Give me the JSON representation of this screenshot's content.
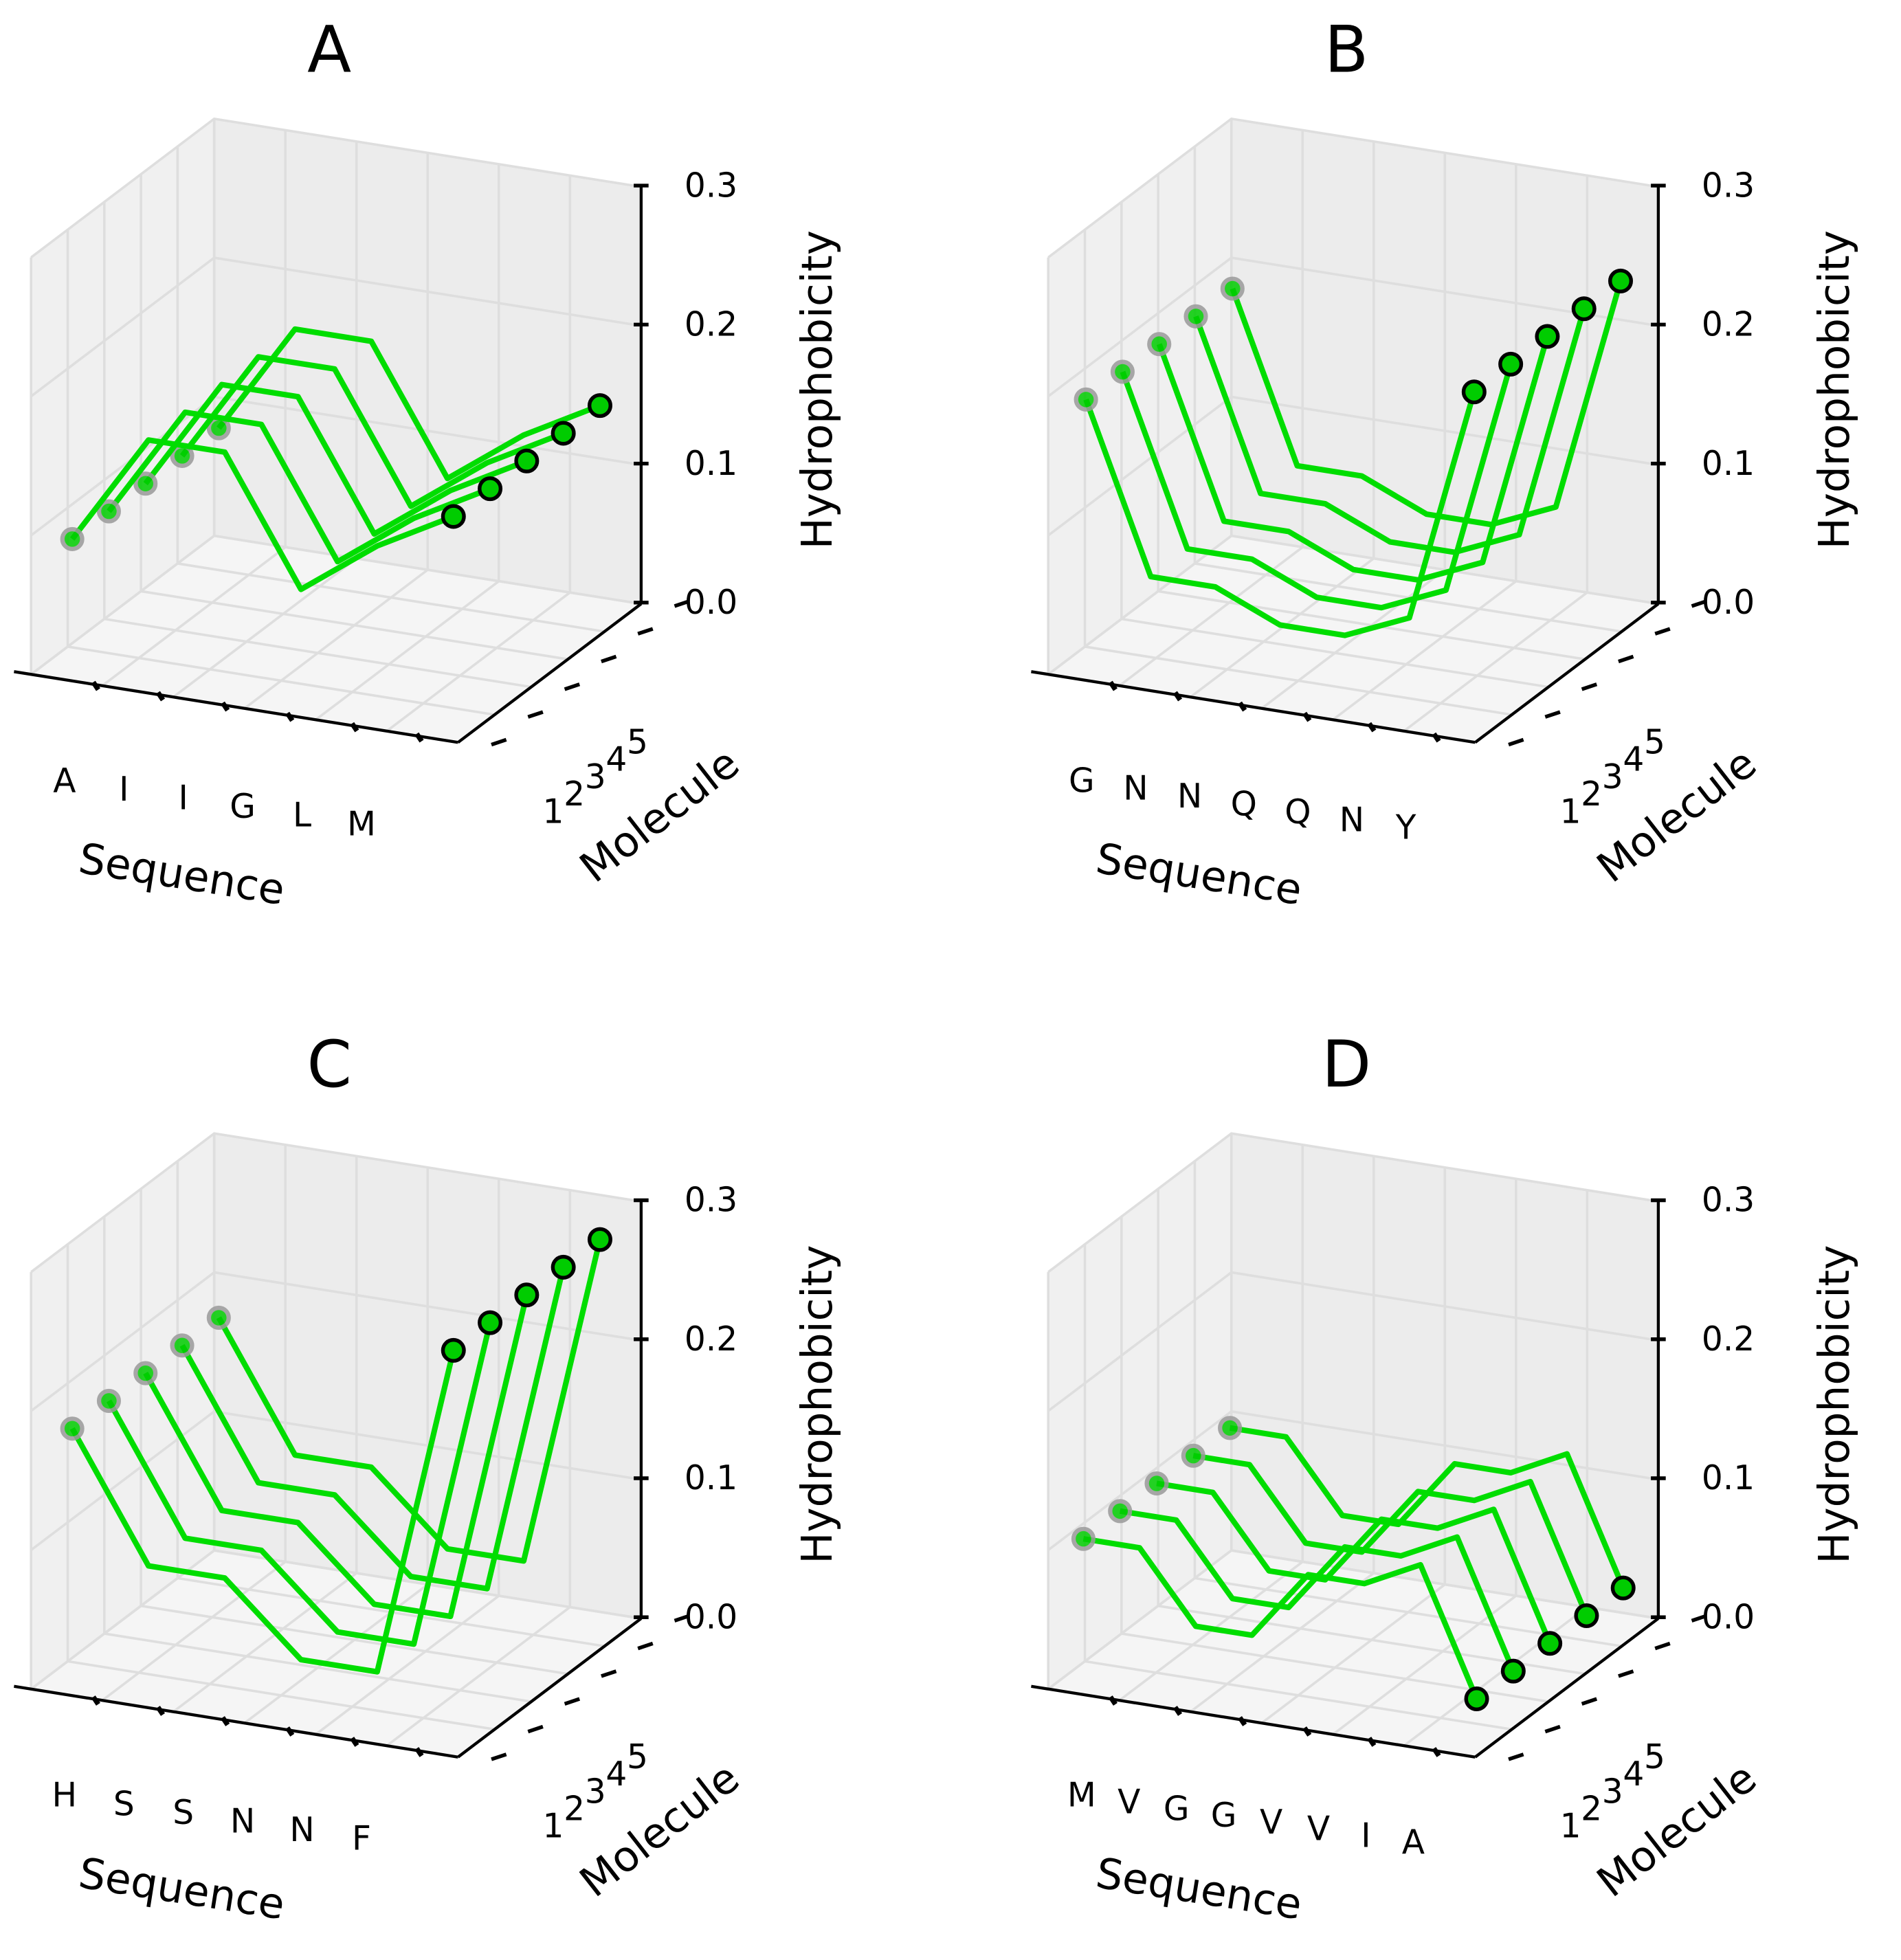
{
  "figure": {
    "background": "#ffffff"
  },
  "colors": {
    "line": "#00dd00",
    "marker_fill": "#00cc00",
    "end_marker_edge": "#000000",
    "start_marker_edge": "#9a9a9a",
    "pane": "#f2f2f2",
    "grid": "#dedede"
  },
  "chart_data": [
    {
      "panel": "A",
      "type": "line3d",
      "title": "A",
      "xlabel": "Sequence",
      "ylabel": "Molecule",
      "zlabel": "Hydrophobicity",
      "sequence": [
        "A",
        "I",
        "I",
        "G",
        "L",
        "M"
      ],
      "molecules": [
        1,
        2,
        3,
        4,
        5
      ],
      "zlim": [
        0.0,
        0.3
      ],
      "zticks": [
        "0.0",
        "0.1",
        "0.2",
        "0.3"
      ],
      "series": [
        {
          "name": "1",
          "values": [
            0.09,
            0.17,
            0.17,
            0.08,
            0.12,
            0.15
          ]
        },
        {
          "name": "2",
          "values": [
            0.09,
            0.17,
            0.17,
            0.08,
            0.12,
            0.15
          ]
        },
        {
          "name": "3",
          "values": [
            0.09,
            0.17,
            0.17,
            0.08,
            0.12,
            0.15
          ]
        },
        {
          "name": "4",
          "values": [
            0.09,
            0.17,
            0.17,
            0.08,
            0.12,
            0.15
          ]
        },
        {
          "name": "5",
          "values": [
            0.09,
            0.17,
            0.17,
            0.08,
            0.12,
            0.15
          ]
        }
      ]
    },
    {
      "panel": "B",
      "type": "line3d",
      "title": "B",
      "xlabel": "Sequence",
      "ylabel": "Molecule",
      "zlabel": "Hydrophobicity",
      "sequence": [
        "G",
        "N",
        "N",
        "Q",
        "Q",
        "N",
        "Y"
      ],
      "molecules": [
        1,
        2,
        3,
        4,
        5
      ],
      "zlim": [
        0.0,
        0.3
      ],
      "zticks": [
        "0.0",
        "0.1",
        "0.2",
        "0.3"
      ],
      "series": [
        {
          "name": "1",
          "values": [
            0.19,
            0.07,
            0.07,
            0.05,
            0.05,
            0.07,
            0.24
          ]
        },
        {
          "name": "2",
          "values": [
            0.19,
            0.07,
            0.07,
            0.05,
            0.05,
            0.07,
            0.24
          ]
        },
        {
          "name": "3",
          "values": [
            0.19,
            0.07,
            0.07,
            0.05,
            0.05,
            0.07,
            0.24
          ]
        },
        {
          "name": "4",
          "values": [
            0.19,
            0.07,
            0.07,
            0.05,
            0.05,
            0.07,
            0.24
          ]
        },
        {
          "name": "5",
          "values": [
            0.19,
            0.07,
            0.07,
            0.05,
            0.05,
            0.07,
            0.24
          ]
        }
      ]
    },
    {
      "panel": "C",
      "type": "line3d",
      "title": "C",
      "xlabel": "Sequence",
      "ylabel": "Molecule",
      "zlabel": "Hydrophobicity",
      "sequence": [
        "H",
        "S",
        "S",
        "N",
        "N",
        "F"
      ],
      "molecules": [
        1,
        2,
        3,
        4,
        5
      ],
      "zlim": [
        0.0,
        0.3
      ],
      "zticks": [
        "0.0",
        "0.1",
        "0.2",
        "0.3"
      ],
      "series": [
        {
          "name": "1",
          "values": [
            0.18,
            0.09,
            0.09,
            0.04,
            0.04,
            0.28
          ]
        },
        {
          "name": "2",
          "values": [
            0.18,
            0.09,
            0.09,
            0.04,
            0.04,
            0.28
          ]
        },
        {
          "name": "3",
          "values": [
            0.18,
            0.09,
            0.09,
            0.04,
            0.04,
            0.28
          ]
        },
        {
          "name": "4",
          "values": [
            0.18,
            0.09,
            0.09,
            0.04,
            0.04,
            0.28
          ]
        },
        {
          "name": "5",
          "values": [
            0.18,
            0.09,
            0.09,
            0.04,
            0.04,
            0.28
          ]
        }
      ]
    },
    {
      "panel": "D",
      "type": "line3d",
      "title": "D",
      "xlabel": "Sequence",
      "ylabel": "Molecule",
      "zlabel": "Hydrophobicity",
      "sequence": [
        "M",
        "V",
        "G",
        "G",
        "V",
        "V",
        "I",
        "A"
      ],
      "molecules": [
        1,
        2,
        3,
        4,
        5
      ],
      "zlim": [
        0.0,
        0.3
      ],
      "zticks": [
        "0.0",
        "0.1",
        "0.2",
        "0.3"
      ],
      "series": [
        {
          "name": "1",
          "values": [
            0.1,
            0.1,
            0.05,
            0.05,
            0.1,
            0.1,
            0.12,
            0.03
          ]
        },
        {
          "name": "2",
          "values": [
            0.1,
            0.1,
            0.05,
            0.05,
            0.1,
            0.1,
            0.12,
            0.03
          ]
        },
        {
          "name": "3",
          "values": [
            0.1,
            0.1,
            0.05,
            0.05,
            0.1,
            0.1,
            0.12,
            0.03
          ]
        },
        {
          "name": "4",
          "values": [
            0.1,
            0.1,
            0.05,
            0.05,
            0.1,
            0.1,
            0.12,
            0.03
          ]
        },
        {
          "name": "5",
          "values": [
            0.1,
            0.1,
            0.05,
            0.05,
            0.1,
            0.1,
            0.12,
            0.03
          ]
        }
      ]
    }
  ]
}
